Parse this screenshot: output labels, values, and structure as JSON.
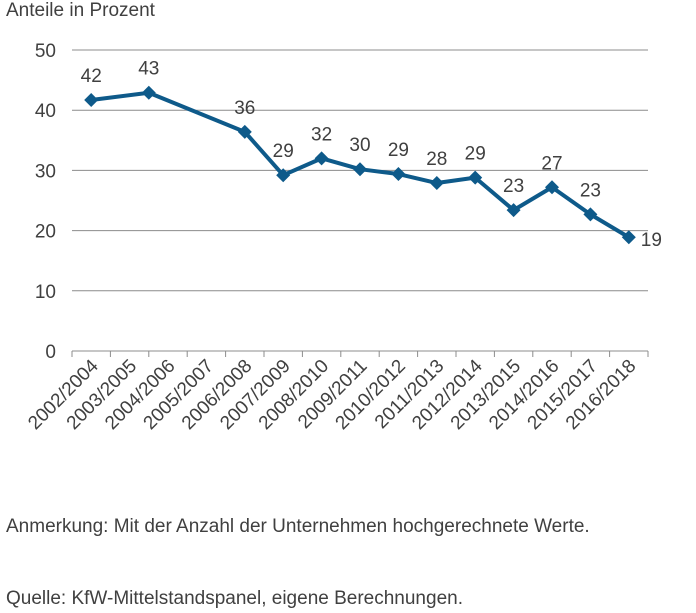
{
  "chart_data": {
    "type": "line",
    "ylabel": "Anteile in Prozent",
    "categories": [
      "2002/2004",
      "2003/2005",
      "2004/2006",
      "2005/2007",
      "2006/2008",
      "2007/2009",
      "2008/2010",
      "2009/2011",
      "2010/2012",
      "2011/2013",
      "2012/2014",
      "2013/2015",
      "2014/2016",
      "2015/2017",
      "2016/2018"
    ],
    "points": [
      {
        "x": 0.5,
        "y": 41.7,
        "label": "42"
      },
      {
        "x": 2.0,
        "y": 42.9,
        "label": "43"
      },
      {
        "x": 4.5,
        "y": 36.4,
        "label": "36"
      },
      {
        "x": 5.5,
        "y": 29.2,
        "label": "29"
      },
      {
        "x": 6.5,
        "y": 32.0,
        "label": "32"
      },
      {
        "x": 7.5,
        "y": 30.2,
        "label": "30"
      },
      {
        "x": 8.5,
        "y": 29.4,
        "label": "29"
      },
      {
        "x": 9.5,
        "y": 27.9,
        "label": "28"
      },
      {
        "x": 10.5,
        "y": 28.8,
        "label": "29"
      },
      {
        "x": 11.5,
        "y": 23.4,
        "label": "23"
      },
      {
        "x": 12.5,
        "y": 27.2,
        "label": "27"
      },
      {
        "x": 13.5,
        "y": 22.7,
        "label": "23"
      },
      {
        "x": 14.5,
        "y": 18.9,
        "label": "19"
      }
    ],
    "yticks": [
      0,
      10,
      20,
      30,
      40,
      50
    ],
    "ylim": [
      0,
      50
    ],
    "grid": true,
    "legend": "none",
    "colors": {
      "line": "#0e5a8a",
      "grid": "#8c8c8c",
      "text": "#404040"
    }
  },
  "notes": {
    "anmerkung": "Anmerkung: Mit der Anzahl der Unternehmen hochgerechnete Werte.",
    "quelle": "Quelle: KfW-Mittelstandspanel, eigene Berechnungen."
  }
}
